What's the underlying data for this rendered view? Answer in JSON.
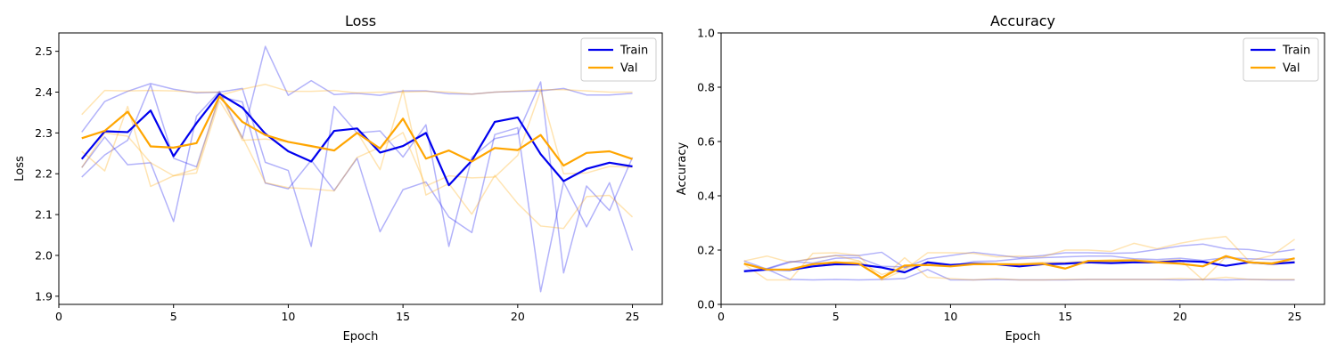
{
  "chart_data": [
    {
      "type": "line",
      "title": "Loss",
      "xlabel": "Epoch",
      "ylabel": "Loss",
      "xlim": [
        0,
        26.3
      ],
      "ylim": [
        1.88,
        2.545
      ],
      "x_ticks": [
        0,
        5,
        10,
        15,
        20,
        25
      ],
      "y_ticks": [
        1.9,
        2.0,
        2.1,
        2.2,
        2.3,
        2.4,
        2.5
      ],
      "y_tick_labels": [
        "1.9",
        "2.0",
        "2.1",
        "2.2",
        "2.3",
        "2.4",
        "2.5"
      ],
      "legend": {
        "position": "top-right",
        "entries": [
          "Train",
          "Val"
        ]
      },
      "x": [
        1,
        2,
        3,
        4,
        5,
        6,
        7,
        8,
        9,
        10,
        11,
        12,
        13,
        14,
        15,
        16,
        17,
        18,
        19,
        20,
        21,
        22,
        23,
        24,
        25
      ],
      "series": [
        {
          "name": "Train",
          "color": "#0000ee",
          "values": [
            2.236,
            2.304,
            2.302,
            2.355,
            2.243,
            2.324,
            2.396,
            2.362,
            2.298,
            2.255,
            2.23,
            2.305,
            2.311,
            2.252,
            2.268,
            2.3,
            2.172,
            2.232,
            2.327,
            2.338,
            2.248,
            2.182,
            2.212,
            2.227,
            2.218
          ]
        },
        {
          "name": "Val",
          "color": "#ffa500",
          "values": [
            2.287,
            2.305,
            2.352,
            2.267,
            2.264,
            2.275,
            2.389,
            2.327,
            2.295,
            2.278,
            2.268,
            2.257,
            2.3,
            2.262,
            2.335,
            2.237,
            2.257,
            2.23,
            2.263,
            2.258,
            2.295,
            2.22,
            2.251,
            2.255,
            2.236
          ]
        }
      ],
      "faint_series": [
        {
          "color": "#0000ee",
          "values": [
            2.302,
            2.377,
            2.402,
            2.421,
            2.407,
            2.398,
            2.4,
            2.409,
            2.228,
            2.208,
            2.022,
            2.365,
            2.3,
            2.305,
            2.241,
            2.32,
            2.022,
            2.24,
            2.286,
            2.298,
            2.425,
            1.957,
            2.17,
            2.11,
            2.24
          ]
        },
        {
          "color": "#0000ee",
          "values": [
            2.215,
            2.29,
            2.222,
            2.227,
            2.083,
            2.341,
            2.402,
            2.287,
            2.512,
            2.392,
            2.428,
            2.394,
            2.397,
            2.392,
            2.403,
            2.403,
            2.396,
            2.395,
            2.4,
            2.402,
            2.403,
            2.409,
            2.393,
            2.393,
            2.397
          ]
        },
        {
          "color": "#0000ee",
          "values": [
            2.192,
            2.246,
            2.282,
            2.418,
            2.238,
            2.217,
            2.389,
            2.376,
            2.177,
            2.163,
            2.233,
            2.159,
            2.238,
            2.058,
            2.161,
            2.18,
            2.094,
            2.056,
            2.296,
            2.313,
            1.911,
            2.18,
            2.07,
            2.178,
            2.012
          ]
        },
        {
          "color": "#ffa500",
          "values": [
            2.345,
            2.404,
            2.403,
            2.404,
            2.403,
            2.4,
            2.4,
            2.282,
            2.285,
            2.278,
            2.266,
            2.256,
            2.302,
            2.21,
            2.405,
            2.148,
            2.176,
            2.101,
            2.196,
            2.127,
            2.072,
            2.066,
            2.144,
            2.147,
            2.094
          ]
        },
        {
          "color": "#ffa500",
          "values": [
            2.255,
            2.207,
            2.365,
            2.169,
            2.195,
            2.212,
            2.392,
            2.407,
            2.419,
            2.402,
            2.402,
            2.404,
            2.398,
            2.4,
            2.4,
            2.402,
            2.4,
            2.395,
            2.4,
            2.403,
            2.406,
            2.406,
            2.403,
            2.4,
            2.4
          ]
        },
        {
          "color": "#ffa500",
          "values": [
            2.215,
            2.3,
            2.292,
            2.227,
            2.195,
            2.202,
            2.379,
            2.29,
            2.178,
            2.166,
            2.163,
            2.158,
            2.24,
            2.265,
            2.301,
            2.17,
            2.195,
            2.19,
            2.192,
            2.245,
            2.404,
            2.2,
            2.202,
            2.218,
            2.216
          ]
        }
      ]
    },
    {
      "type": "line",
      "title": "Accuracy",
      "xlabel": "Epoch",
      "ylabel": "Accuracy",
      "xlim": [
        0,
        26.3
      ],
      "ylim": [
        0.0,
        1.0
      ],
      "x_ticks": [
        0,
        5,
        10,
        15,
        20,
        25
      ],
      "y_ticks": [
        0.0,
        0.2,
        0.4,
        0.6,
        0.8,
        1.0
      ],
      "y_tick_labels": [
        "0.0",
        "0.2",
        "0.4",
        "0.6",
        "0.8",
        "1.0"
      ],
      "legend": {
        "position": "top-right",
        "entries": [
          "Train",
          "Val"
        ]
      },
      "x": [
        1,
        2,
        3,
        4,
        5,
        6,
        7,
        8,
        9,
        10,
        11,
        12,
        13,
        14,
        15,
        16,
        17,
        18,
        19,
        20,
        21,
        22,
        23,
        24,
        25
      ],
      "series": [
        {
          "name": "Train",
          "color": "#0000ee",
          "values": [
            0.122,
            0.128,
            0.127,
            0.14,
            0.148,
            0.147,
            0.136,
            0.118,
            0.155,
            0.145,
            0.15,
            0.148,
            0.14,
            0.148,
            0.15,
            0.155,
            0.152,
            0.155,
            0.155,
            0.16,
            0.157,
            0.142,
            0.155,
            0.149,
            0.155
          ]
        },
        {
          "name": "Val",
          "color": "#ffa500",
          "values": [
            0.15,
            0.128,
            0.128,
            0.148,
            0.155,
            0.15,
            0.098,
            0.143,
            0.145,
            0.14,
            0.148,
            0.148,
            0.147,
            0.15,
            0.132,
            0.16,
            0.16,
            0.162,
            0.155,
            0.15,
            0.14,
            0.178,
            0.155,
            0.15,
            0.17
          ]
        }
      ],
      "faint_series": [
        {
          "color": "#0000ee",
          "values": [
            0.12,
            0.13,
            0.155,
            0.168,
            0.18,
            0.18,
            0.192,
            0.135,
            0.168,
            0.18,
            0.192,
            0.182,
            0.172,
            0.18,
            0.19,
            0.19,
            0.188,
            0.19,
            0.202,
            0.215,
            0.222,
            0.205,
            0.202,
            0.19,
            0.202
          ]
        },
        {
          "color": "#0000ee",
          "values": [
            0.16,
            0.13,
            0.092,
            0.09,
            0.092,
            0.09,
            0.092,
            0.095,
            0.128,
            0.09,
            0.09,
            0.092,
            0.09,
            0.09,
            0.09,
            0.092,
            0.092,
            0.092,
            0.092,
            0.09,
            0.092,
            0.09,
            0.092,
            0.09,
            0.09
          ]
        },
        {
          "color": "#0000ee",
          "values": [
            0.125,
            0.132,
            0.158,
            0.152,
            0.17,
            0.172,
            0.14,
            0.138,
            0.148,
            0.142,
            0.158,
            0.16,
            0.168,
            0.172,
            0.175,
            0.178,
            0.178,
            0.168,
            0.165,
            0.17,
            0.162,
            0.172,
            0.168,
            0.165,
            0.168
          ]
        },
        {
          "color": "#ffa500",
          "values": [
            0.148,
            0.09,
            0.09,
            0.188,
            0.19,
            0.18,
            0.09,
            0.128,
            0.19,
            0.19,
            0.188,
            0.175,
            0.178,
            0.175,
            0.2,
            0.2,
            0.195,
            0.225,
            0.205,
            0.225,
            0.24,
            0.25,
            0.16,
            0.18,
            0.24
          ]
        },
        {
          "color": "#ffa500",
          "values": [
            0.16,
            0.178,
            0.155,
            0.17,
            0.18,
            0.16,
            0.092,
            0.172,
            0.1,
            0.095,
            0.09,
            0.095,
            0.09,
            0.09,
            0.092,
            0.092,
            0.092,
            0.092,
            0.092,
            0.095,
            0.092,
            0.1,
            0.092,
            0.092,
            0.092
          ]
        },
        {
          "color": "#ffa500",
          "values": [
            0.152,
            0.128,
            0.13,
            0.15,
            0.15,
            0.16,
            0.11,
            0.132,
            0.15,
            0.145,
            0.152,
            0.15,
            0.15,
            0.155,
            0.155,
            0.16,
            0.165,
            0.165,
            0.16,
            0.165,
            0.09,
            0.175,
            0.155,
            0.155,
            0.16
          ]
        }
      ]
    }
  ]
}
